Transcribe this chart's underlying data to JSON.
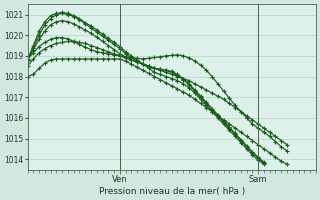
{
  "title": "Pression niveau de la mer( hPa )",
  "ylim": [
    1013.5,
    1021.5
  ],
  "yticks": [
    1014,
    1015,
    1016,
    1017,
    1018,
    1019,
    1020,
    1021
  ],
  "bg_outer": "#d0e8e0",
  "bg_inner": "#ddf0ea",
  "grid_color": "#b0d4c4",
  "line_color": "#1a5c1a",
  "ven_x": 96,
  "sam_x": 240,
  "xlim": [
    0,
    300
  ],
  "series": [
    {
      "points": [
        [
          0,
          1018.0
        ],
        [
          6,
          1018.1
        ],
        [
          12,
          1018.4
        ],
        [
          18,
          1018.65
        ],
        [
          24,
          1018.8
        ],
        [
          30,
          1018.85
        ],
        [
          36,
          1018.85
        ],
        [
          42,
          1018.85
        ],
        [
          48,
          1018.85
        ],
        [
          54,
          1018.85
        ],
        [
          60,
          1018.85
        ],
        [
          66,
          1018.85
        ],
        [
          72,
          1018.85
        ],
        [
          78,
          1018.85
        ],
        [
          84,
          1018.85
        ],
        [
          90,
          1018.85
        ],
        [
          96,
          1018.85
        ],
        [
          102,
          1018.75
        ],
        [
          108,
          1018.6
        ],
        [
          114,
          1018.45
        ],
        [
          120,
          1018.3
        ],
        [
          126,
          1018.15
        ],
        [
          132,
          1018.0
        ],
        [
          138,
          1017.85
        ],
        [
          144,
          1017.7
        ],
        [
          150,
          1017.55
        ],
        [
          156,
          1017.4
        ],
        [
          162,
          1017.25
        ],
        [
          168,
          1017.1
        ],
        [
          174,
          1016.9
        ],
        [
          180,
          1016.7
        ],
        [
          186,
          1016.5
        ],
        [
          192,
          1016.3
        ],
        [
          198,
          1016.1
        ],
        [
          204,
          1015.9
        ],
        [
          210,
          1015.7
        ],
        [
          216,
          1015.5
        ],
        [
          222,
          1015.3
        ],
        [
          228,
          1015.1
        ],
        [
          234,
          1014.9
        ],
        [
          240,
          1014.7
        ],
        [
          246,
          1014.5
        ],
        [
          252,
          1014.3
        ],
        [
          258,
          1014.1
        ],
        [
          264,
          1013.9
        ],
        [
          270,
          1013.75
        ]
      ]
    },
    {
      "points": [
        [
          0,
          1018.5
        ],
        [
          6,
          1018.85
        ],
        [
          12,
          1019.15
        ],
        [
          18,
          1019.35
        ],
        [
          24,
          1019.5
        ],
        [
          30,
          1019.6
        ],
        [
          36,
          1019.65
        ],
        [
          42,
          1019.7
        ],
        [
          48,
          1019.68
        ],
        [
          54,
          1019.65
        ],
        [
          60,
          1019.6
        ],
        [
          66,
          1019.5
        ],
        [
          72,
          1019.4
        ],
        [
          78,
          1019.3
        ],
        [
          84,
          1019.2
        ],
        [
          90,
          1019.1
        ],
        [
          96,
          1019.0
        ],
        [
          102,
          1018.9
        ],
        [
          108,
          1018.8
        ],
        [
          114,
          1018.7
        ],
        [
          120,
          1018.6
        ],
        [
          126,
          1018.5
        ],
        [
          132,
          1018.4
        ],
        [
          138,
          1018.3
        ],
        [
          144,
          1018.2
        ],
        [
          150,
          1018.1
        ],
        [
          156,
          1018.0
        ],
        [
          162,
          1017.9
        ],
        [
          168,
          1017.8
        ],
        [
          174,
          1017.65
        ],
        [
          180,
          1017.5
        ],
        [
          186,
          1017.35
        ],
        [
          192,
          1017.2
        ],
        [
          198,
          1017.05
        ],
        [
          204,
          1016.9
        ],
        [
          210,
          1016.7
        ],
        [
          216,
          1016.5
        ],
        [
          222,
          1016.3
        ],
        [
          228,
          1016.1
        ],
        [
          234,
          1015.9
        ],
        [
          240,
          1015.7
        ],
        [
          246,
          1015.5
        ],
        [
          252,
          1015.3
        ],
        [
          258,
          1015.1
        ],
        [
          264,
          1014.9
        ],
        [
          270,
          1014.7
        ]
      ]
    },
    {
      "points": [
        [
          0,
          1018.8
        ],
        [
          6,
          1019.5
        ],
        [
          12,
          1020.2
        ],
        [
          18,
          1020.65
        ],
        [
          24,
          1020.95
        ],
        [
          30,
          1021.05
        ],
        [
          36,
          1021.1
        ],
        [
          42,
          1021.05
        ],
        [
          48,
          1020.95
        ],
        [
          54,
          1020.8
        ],
        [
          60,
          1020.6
        ],
        [
          66,
          1020.45
        ],
        [
          72,
          1020.25
        ],
        [
          78,
          1020.05
        ],
        [
          84,
          1019.85
        ],
        [
          90,
          1019.65
        ],
        [
          96,
          1019.45
        ],
        [
          102,
          1019.2
        ],
        [
          108,
          1019.0
        ],
        [
          114,
          1018.8
        ],
        [
          120,
          1018.6
        ],
        [
          126,
          1018.4
        ],
        [
          132,
          1018.2
        ],
        [
          138,
          1018.1
        ],
        [
          144,
          1018.0
        ],
        [
          150,
          1017.9
        ],
        [
          156,
          1017.8
        ],
        [
          162,
          1017.65
        ],
        [
          168,
          1017.45
        ],
        [
          174,
          1017.2
        ],
        [
          180,
          1016.9
        ],
        [
          186,
          1016.6
        ],
        [
          192,
          1016.3
        ],
        [
          198,
          1016.0
        ],
        [
          204,
          1015.7
        ],
        [
          210,
          1015.4
        ],
        [
          216,
          1015.1
        ],
        [
          222,
          1014.8
        ],
        [
          228,
          1014.5
        ],
        [
          234,
          1014.2
        ],
        [
          240,
          1013.95
        ],
        [
          246,
          1013.75
        ]
      ]
    },
    {
      "points": [
        [
          0,
          1018.8
        ],
        [
          6,
          1019.4
        ],
        [
          12,
          1020.0
        ],
        [
          18,
          1020.5
        ],
        [
          24,
          1020.8
        ],
        [
          30,
          1021.0
        ],
        [
          36,
          1021.05
        ],
        [
          42,
          1021.0
        ],
        [
          48,
          1020.9
        ],
        [
          54,
          1020.75
        ],
        [
          60,
          1020.55
        ],
        [
          66,
          1020.35
        ],
        [
          72,
          1020.15
        ],
        [
          78,
          1019.95
        ],
        [
          84,
          1019.75
        ],
        [
          90,
          1019.55
        ],
        [
          96,
          1019.35
        ],
        [
          102,
          1019.1
        ],
        [
          108,
          1018.9
        ],
        [
          114,
          1018.75
        ],
        [
          120,
          1018.6
        ],
        [
          126,
          1018.5
        ],
        [
          132,
          1018.4
        ],
        [
          138,
          1018.35
        ],
        [
          144,
          1018.3
        ],
        [
          150,
          1018.2
        ],
        [
          156,
          1018.05
        ],
        [
          162,
          1017.85
        ],
        [
          168,
          1017.6
        ],
        [
          174,
          1017.3
        ],
        [
          180,
          1017.0
        ],
        [
          186,
          1016.7
        ],
        [
          192,
          1016.4
        ],
        [
          198,
          1016.1
        ],
        [
          204,
          1015.8
        ],
        [
          210,
          1015.5
        ],
        [
          216,
          1015.2
        ],
        [
          222,
          1014.9
        ],
        [
          228,
          1014.6
        ],
        [
          234,
          1014.3
        ],
        [
          240,
          1014.05
        ],
        [
          246,
          1013.8
        ]
      ]
    },
    {
      "points": [
        [
          0,
          1018.8
        ],
        [
          6,
          1019.3
        ],
        [
          12,
          1019.8
        ],
        [
          18,
          1020.2
        ],
        [
          24,
          1020.5
        ],
        [
          30,
          1020.65
        ],
        [
          36,
          1020.7
        ],
        [
          42,
          1020.65
        ],
        [
          48,
          1020.55
        ],
        [
          54,
          1020.4
        ],
        [
          60,
          1020.25
        ],
        [
          66,
          1020.1
        ],
        [
          72,
          1019.9
        ],
        [
          78,
          1019.7
        ],
        [
          84,
          1019.5
        ],
        [
          90,
          1019.3
        ],
        [
          96,
          1019.1
        ],
        [
          102,
          1018.95
        ],
        [
          108,
          1018.8
        ],
        [
          114,
          1018.7
        ],
        [
          120,
          1018.6
        ],
        [
          126,
          1018.5
        ],
        [
          132,
          1018.4
        ],
        [
          138,
          1018.35
        ],
        [
          144,
          1018.3
        ],
        [
          150,
          1018.25
        ],
        [
          156,
          1018.1
        ],
        [
          162,
          1017.9
        ],
        [
          168,
          1017.65
        ],
        [
          174,
          1017.35
        ],
        [
          180,
          1017.05
        ],
        [
          186,
          1016.75
        ],
        [
          192,
          1016.45
        ],
        [
          198,
          1016.15
        ],
        [
          204,
          1015.85
        ],
        [
          210,
          1015.55
        ],
        [
          216,
          1015.25
        ],
        [
          222,
          1014.95
        ],
        [
          228,
          1014.65
        ],
        [
          234,
          1014.35
        ],
        [
          240,
          1014.1
        ],
        [
          246,
          1013.85
        ]
      ]
    },
    {
      "points": [
        [
          0,
          1018.85
        ],
        [
          6,
          1019.15
        ],
        [
          12,
          1019.45
        ],
        [
          18,
          1019.65
        ],
        [
          24,
          1019.8
        ],
        [
          30,
          1019.88
        ],
        [
          36,
          1019.88
        ],
        [
          42,
          1019.82
        ],
        [
          48,
          1019.7
        ],
        [
          54,
          1019.55
        ],
        [
          60,
          1019.42
        ],
        [
          66,
          1019.3
        ],
        [
          72,
          1019.2
        ],
        [
          78,
          1019.15
        ],
        [
          84,
          1019.1
        ],
        [
          90,
          1019.05
        ],
        [
          96,
          1019.0
        ],
        [
          102,
          1018.95
        ],
        [
          108,
          1018.9
        ],
        [
          114,
          1018.88
        ],
        [
          120,
          1018.85
        ],
        [
          126,
          1018.88
        ],
        [
          132,
          1018.92
        ],
        [
          138,
          1018.95
        ],
        [
          144,
          1019.0
        ],
        [
          150,
          1019.02
        ],
        [
          156,
          1019.05
        ],
        [
          162,
          1019.0
        ],
        [
          168,
          1018.9
        ],
        [
          174,
          1018.75
        ],
        [
          180,
          1018.55
        ],
        [
          186,
          1018.3
        ],
        [
          192,
          1018.0
        ],
        [
          198,
          1017.65
        ],
        [
          204,
          1017.3
        ],
        [
          210,
          1016.95
        ],
        [
          216,
          1016.6
        ],
        [
          222,
          1016.3
        ],
        [
          228,
          1016.0
        ],
        [
          234,
          1015.7
        ],
        [
          240,
          1015.5
        ],
        [
          246,
          1015.3
        ],
        [
          252,
          1015.1
        ],
        [
          258,
          1014.85
        ],
        [
          264,
          1014.6
        ],
        [
          270,
          1014.4
        ]
      ]
    }
  ],
  "x_label_ven": "Ven",
  "x_label_sam": "Sam"
}
